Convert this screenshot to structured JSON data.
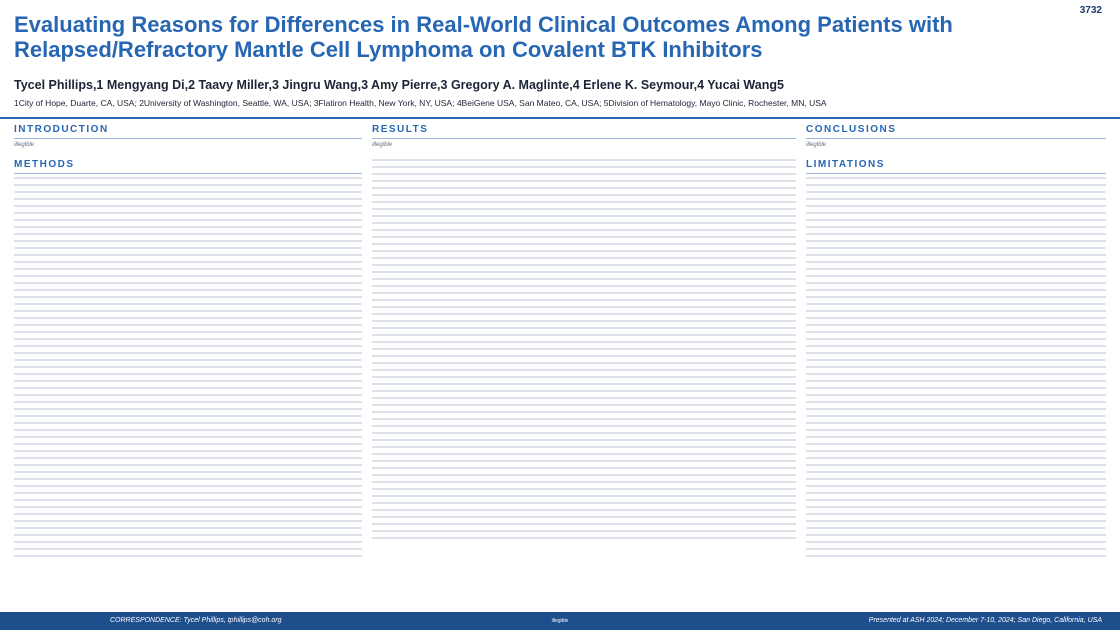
{
  "poster": {
    "number": "3732",
    "title": "Evaluating Reasons for Differences in Real-World Clinical Outcomes Among Patients with Relapsed/Refractory Mantle Cell Lymphoma on Covalent BTK Inhibitors",
    "authors": "Tycel Phillips,1 Mengyang Di,2 Taavy Miller,3 Jingru Wang,3 Amy Pierre,3 Gregory A. Maglinte,4 Erlene K. Seymour,4 Yucai Wang5",
    "affiliations": "1City of Hope, Duarte, CA, USA; 2University of Washington, Seattle, WA, USA; 3Flatiron Health, New York, NY, USA; 4BeiGene USA, San Mateo, CA, USA; 5Division of Hematology, Mayo Clinic, Rochester, MN, USA"
  },
  "columns": {
    "left": {
      "headings": [
        "INTRODUCTION",
        "METHODS"
      ],
      "body": "illegible"
    },
    "center": {
      "headings": [
        "RESULTS"
      ],
      "body": "illegible"
    },
    "right": {
      "headings": [
        "CONCLUSIONS",
        "LIMITATIONS"
      ],
      "body": "illegible"
    }
  },
  "footer": {
    "correspondence": "CORRESPONDENCE: Tycel Phillips, tphillips@coh.org",
    "copyright": "illegible",
    "presented": "Presented at ASH 2024; December 7-10, 2024; San Diego, California, USA"
  }
}
